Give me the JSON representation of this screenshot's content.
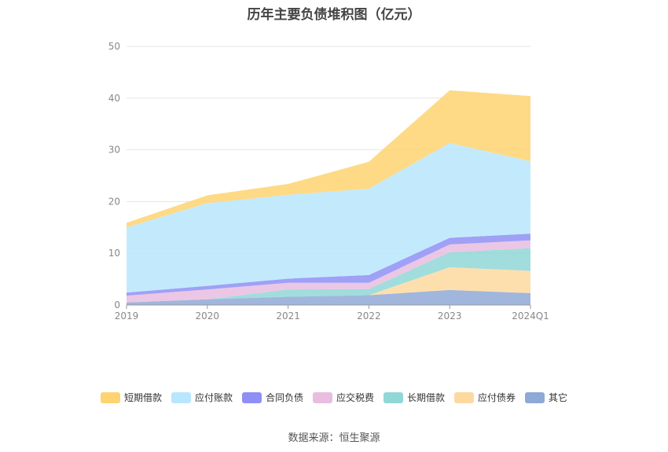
{
  "chart_data": {
    "type": "area",
    "stacked": true,
    "title": "历年主要负债堆积图（亿元）",
    "categories": [
      "2019",
      "2020",
      "2021",
      "2022",
      "2023",
      "2024Q1"
    ],
    "ylim": [
      0,
      50
    ],
    "yticks": [
      0,
      10,
      20,
      30,
      40,
      50
    ],
    "grid": true,
    "legend_position": "bottom",
    "series": [
      {
        "name": "其它",
        "color": "#8fa9d6",
        "values": [
          0.5,
          1.1,
          1.6,
          1.9,
          2.9,
          2.3
        ]
      },
      {
        "name": "应付债券",
        "color": "#fdd9a0",
        "values": [
          0.0,
          0.0,
          0.0,
          0.0,
          4.4,
          4.3
        ]
      },
      {
        "name": "长期借款",
        "color": "#91d7d6",
        "values": [
          0.0,
          0.0,
          1.4,
          1.2,
          2.9,
          4.4
        ]
      },
      {
        "name": "应交税费",
        "color": "#e8bde0",
        "values": [
          1.3,
          1.9,
          1.3,
          1.2,
          1.5,
          1.5
        ]
      },
      {
        "name": "合同负债",
        "color": "#8f8ff5",
        "values": [
          0.6,
          0.7,
          0.8,
          1.5,
          1.3,
          1.3
        ]
      },
      {
        "name": "应付账款",
        "color": "#b8e6fc",
        "values": [
          12.6,
          16.0,
          16.2,
          16.7,
          18.3,
          14.0
        ]
      },
      {
        "name": "短期借款",
        "color": "#fed371",
        "values": [
          0.9,
          1.5,
          2.1,
          5.2,
          10.2,
          12.6
        ]
      }
    ],
    "legend_order": [
      "短期借款",
      "应付账款",
      "合同负债",
      "应交税费",
      "长期借款",
      "应付债券",
      "其它"
    ],
    "source": "数据来源：恒生聚源"
  }
}
